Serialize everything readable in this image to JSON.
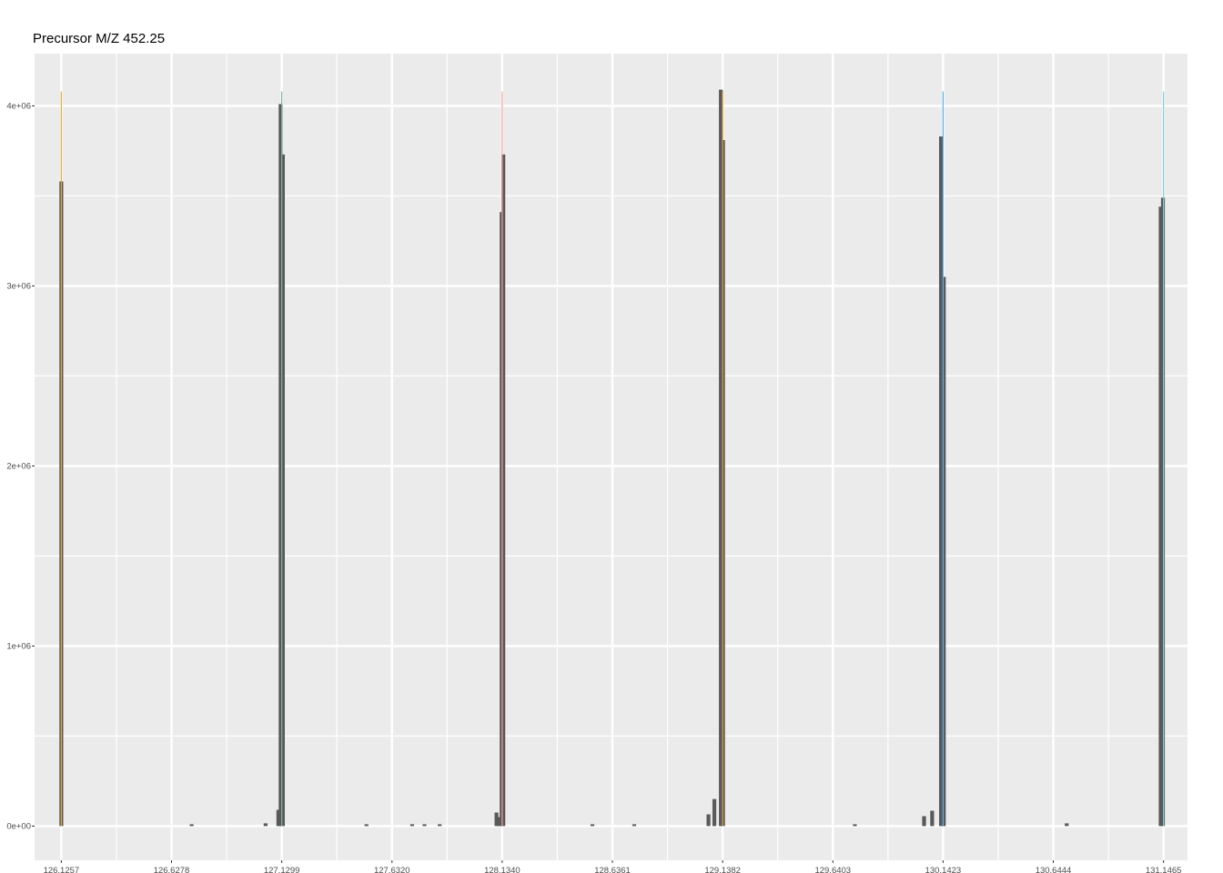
{
  "chart_data": {
    "type": "bar",
    "title": "Precursor M/Z 452.25",
    "xlabel": "",
    "ylabel": "",
    "x_ticks": [
      "126.1257",
      "126.6278",
      "127.1299",
      "127.6320",
      "128.1340",
      "128.6361",
      "129.1382",
      "129.6403",
      "130.1423",
      "130.6444",
      "131.1465"
    ],
    "y_ticks": [
      "0e+00",
      "1e+06",
      "2e+06",
      "3e+06",
      "4e+06"
    ],
    "xlim": [
      126.0039,
      131.2558
    ],
    "ylim": [
      -190000,
      4290000
    ],
    "grid": true,
    "panel_background": "#ebebeb",
    "grid_color": "#ffffff",
    "bar_color": "#595959",
    "reporter_lines": [
      {
        "x": 126.1257,
        "top": 4080000,
        "color": "#e6ab3c"
      },
      {
        "x": 127.1299,
        "top": 4080000,
        "color": "#7fb3a6"
      },
      {
        "x": 128.134,
        "top": 4080000,
        "color": "#f2a49a"
      },
      {
        "x": 129.1382,
        "top": 4080000,
        "color": "#e8a33a"
      },
      {
        "x": 130.1423,
        "top": 4080000,
        "color": "#56b4e9"
      },
      {
        "x": 131.1465,
        "top": 4080000,
        "color": "#7ccfd8"
      }
    ],
    "peaks": [
      {
        "mz": 126.1257,
        "intensity": 3580000
      },
      {
        "mz": 126.7195,
        "intensity": 10000
      },
      {
        "mz": 127.0562,
        "intensity": 15000
      },
      {
        "mz": 127.1143,
        "intensity": 90000
      },
      {
        "mz": 127.1247,
        "intensity": 4010000
      },
      {
        "mz": 127.1351,
        "intensity": 3730000
      },
      {
        "mz": 127.5158,
        "intensity": 10000
      },
      {
        "mz": 127.7237,
        "intensity": 10000
      },
      {
        "mz": 127.78,
        "intensity": 10000
      },
      {
        "mz": 127.8493,
        "intensity": 10000
      },
      {
        "mz": 128.108,
        "intensity": 75000
      },
      {
        "mz": 128.121,
        "intensity": 50000
      },
      {
        "mz": 128.1314,
        "intensity": 3410000
      },
      {
        "mz": 128.1392,
        "intensity": 3730000
      },
      {
        "mz": 128.5449,
        "intensity": 10000
      },
      {
        "mz": 128.7354,
        "intensity": 10000
      },
      {
        "mz": 129.0736,
        "intensity": 65000
      },
      {
        "mz": 129.1005,
        "intensity": 150000
      },
      {
        "mz": 129.13,
        "intensity": 4090000
      },
      {
        "mz": 129.14,
        "intensity": 3810000
      },
      {
        "mz": 129.7405,
        "intensity": 10000
      },
      {
        "mz": 130.0558,
        "intensity": 55000
      },
      {
        "mz": 130.0926,
        "intensity": 85000
      },
      {
        "mz": 130.1328,
        "intensity": 3830000
      },
      {
        "mz": 130.1458,
        "intensity": 3050000
      },
      {
        "mz": 130.7055,
        "intensity": 15000
      },
      {
        "mz": 131.1335,
        "intensity": 3440000
      },
      {
        "mz": 131.1439,
        "intensity": 3490000
      }
    ]
  }
}
